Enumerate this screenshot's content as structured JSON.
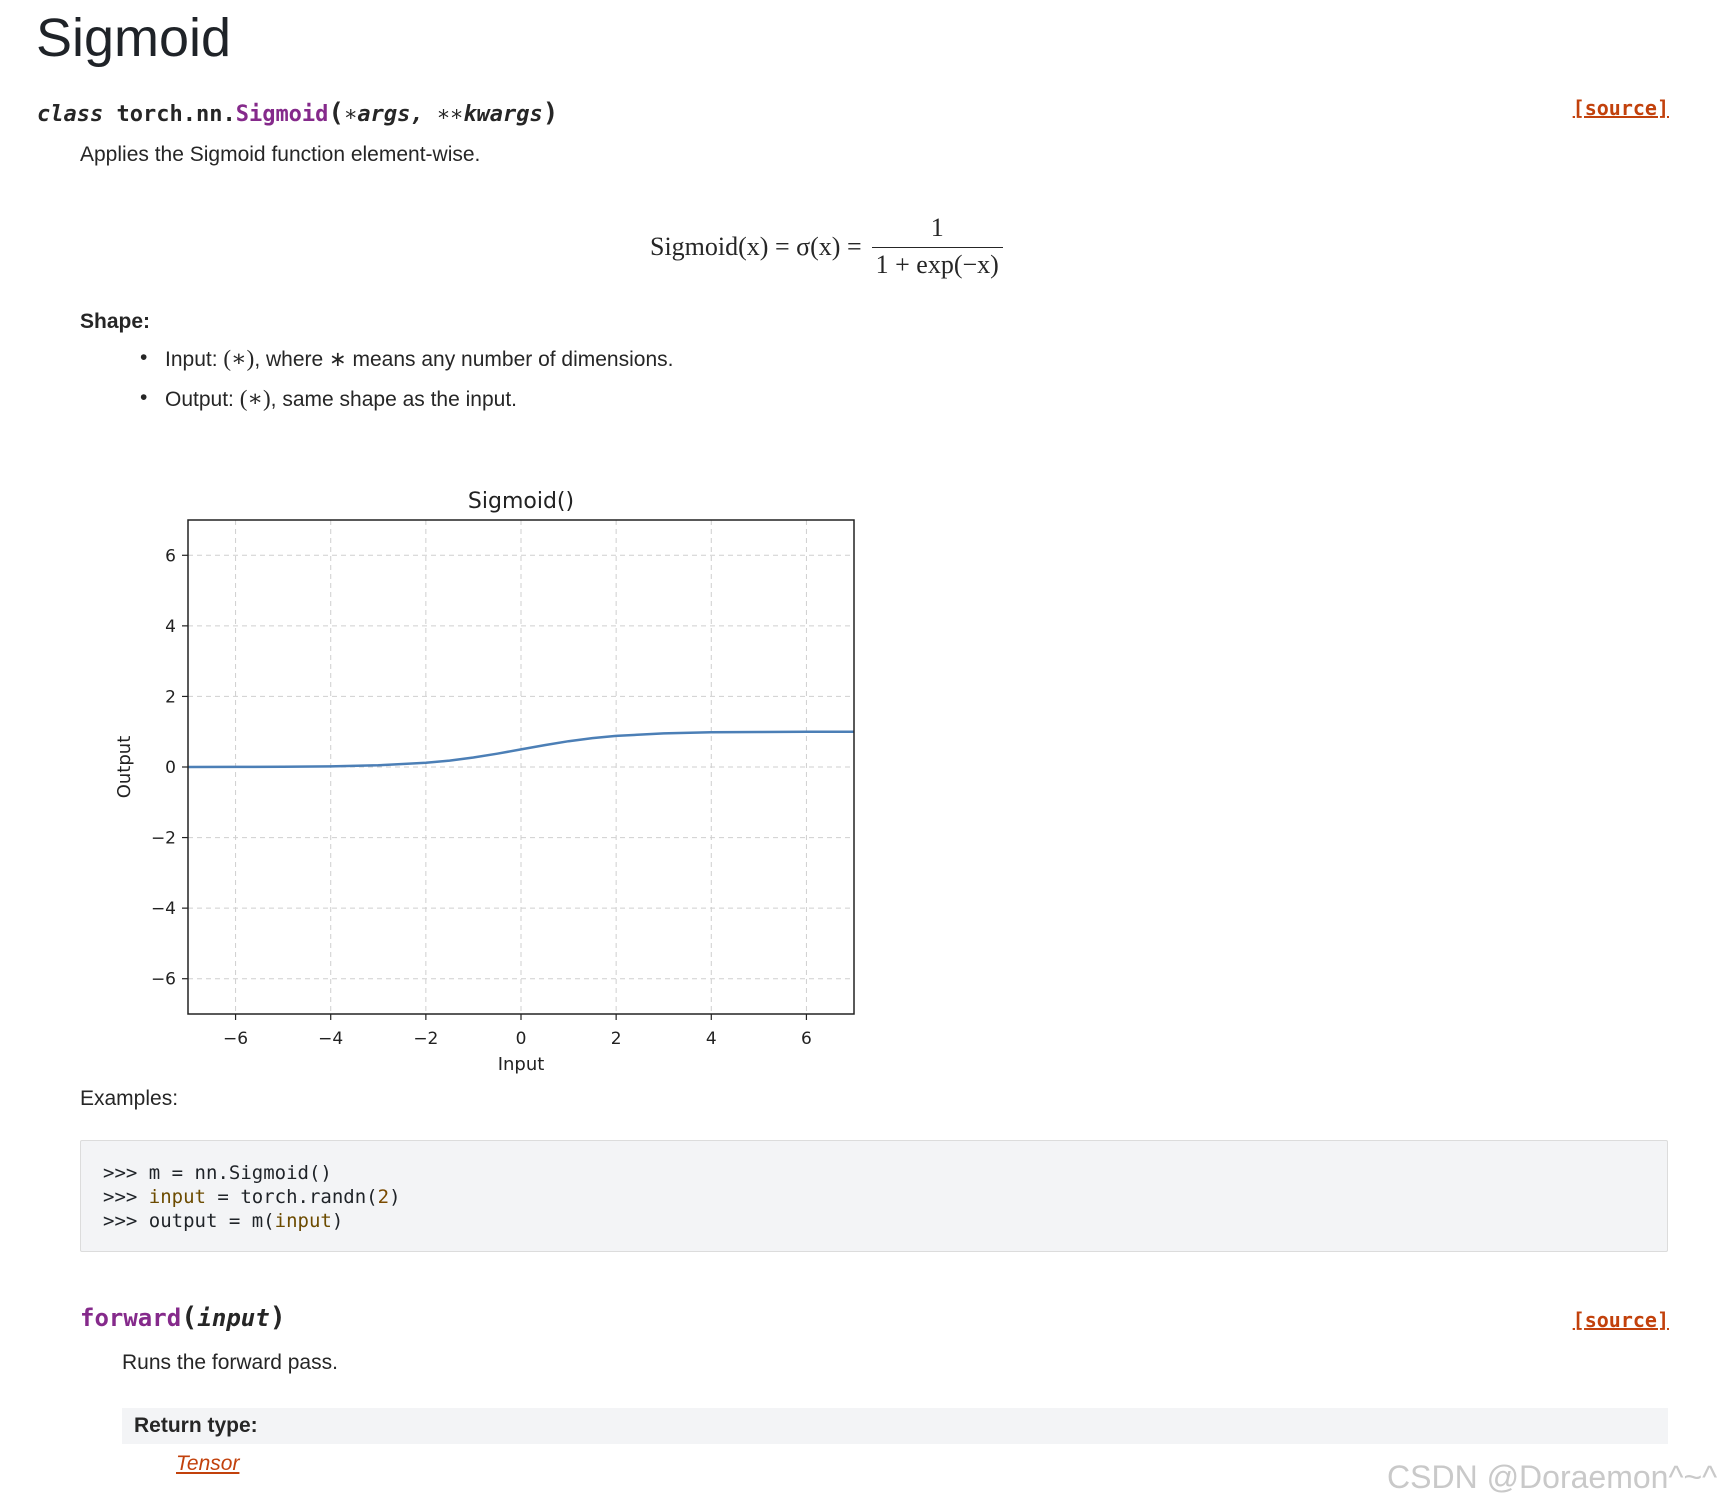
{
  "page_title": "Sigmoid",
  "class_signature": {
    "keyword": "class",
    "module": "torch.nn.",
    "name": "Sigmoid",
    "open_paren": "(",
    "args_prefix": "∗",
    "args": "args",
    "sep": ", ",
    "kwargs_prefix": "∗∗",
    "kwargs": "kwargs",
    "close_paren": ")"
  },
  "source_link_label": "[source]",
  "description": "Applies the Sigmoid function element-wise.",
  "formula": {
    "lhs": "Sigmoid(x) = σ(x) =",
    "numerator": "1",
    "denominator": "1 + exp(−x)"
  },
  "shape": {
    "label": "Shape:",
    "items": [
      {
        "prefix": "Input: ",
        "math": "(∗)",
        "suffix": ", where ∗ means any number of dimensions."
      },
      {
        "prefix": "Output: ",
        "math": "(∗)",
        "suffix": ", same shape as the input."
      }
    ]
  },
  "chart_data": {
    "type": "line",
    "title": "Sigmoid()",
    "xlabel": "Input",
    "ylabel": "Output",
    "xlim": [
      -7,
      7
    ],
    "ylim": [
      -7,
      7
    ],
    "xticks": [
      -6,
      -4,
      -2,
      0,
      2,
      4,
      6
    ],
    "yticks": [
      -6,
      -4,
      -2,
      0,
      2,
      4,
      6
    ],
    "xtick_labels": [
      "−6",
      "−4",
      "−2",
      "0",
      "2",
      "4",
      "6"
    ],
    "ytick_labels": [
      "−6",
      "−4",
      "−2",
      "0",
      "2",
      "4",
      "6"
    ],
    "grid": true,
    "series": [
      {
        "color": "#4c7fb6",
        "x": [
          -7,
          -6,
          -5,
          -4,
          -3,
          -2,
          -1.5,
          -1,
          -0.5,
          0,
          0.5,
          1,
          1.5,
          2,
          3,
          4,
          5,
          6,
          7
        ],
        "y": [
          0.001,
          0.002,
          0.007,
          0.018,
          0.047,
          0.119,
          0.182,
          0.269,
          0.378,
          0.5,
          0.622,
          0.731,
          0.818,
          0.881,
          0.953,
          0.982,
          0.993,
          0.998,
          0.999
        ]
      }
    ]
  },
  "examples_label": "Examples:",
  "code": {
    "line1": {
      "prompt": ">>> ",
      "a": "m ",
      "eq": "= ",
      "b": "nn",
      "dot": ".",
      "c": "Sigmoid()"
    },
    "line2": {
      "prompt": ">>> ",
      "a": "input",
      "sp": " ",
      "eq": "= ",
      "b": "torch",
      "dot": ".",
      "c": "randn(",
      "num": "2",
      "close": ")"
    },
    "line3": {
      "prompt": ">>> ",
      "a": "output ",
      "eq": "= ",
      "b": "m(",
      "c": "input",
      "close": ")"
    }
  },
  "method": {
    "name": "forward",
    "open_paren": "(",
    "param": "input",
    "close_paren": ")",
    "description": "Runs the forward pass.",
    "return_label": "Return type:",
    "return_type": "Tensor"
  },
  "watermark": "CSDN @Doraemon^~^"
}
